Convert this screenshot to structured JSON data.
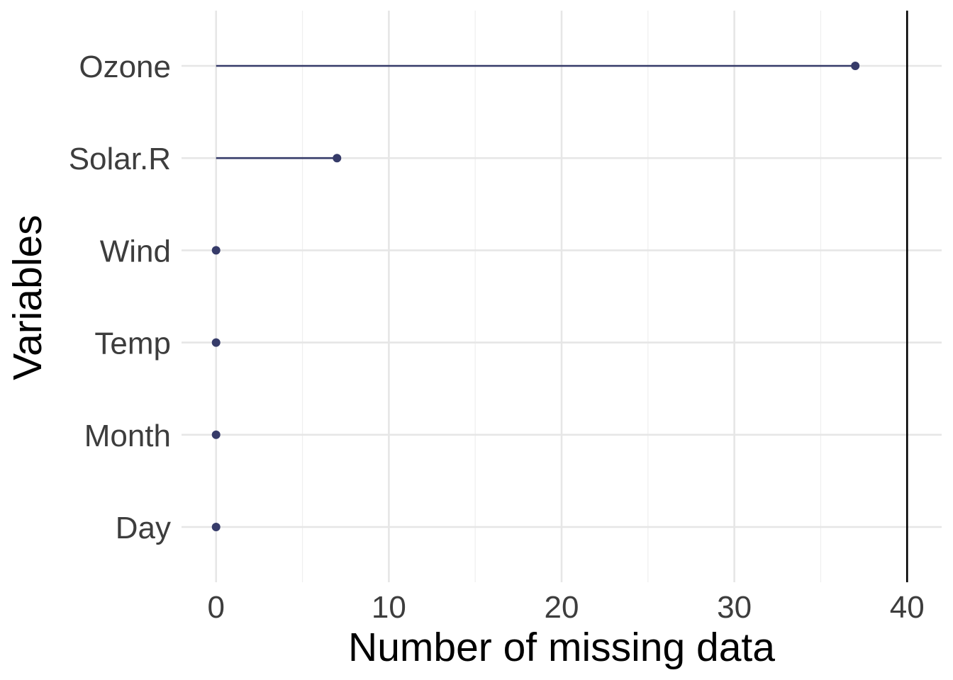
{
  "chart_data": {
    "type": "lollipop",
    "categories": [
      "Ozone",
      "Solar.R",
      "Wind",
      "Temp",
      "Month",
      "Day"
    ],
    "values": [
      37,
      7,
      0,
      0,
      0,
      0
    ],
    "xlabel": "Number of missing data",
    "ylabel": "Variables",
    "xlim": [
      -2,
      42
    ],
    "x_ticks": [
      0,
      10,
      20,
      30,
      40
    ],
    "x_tick_labels": [
      "0",
      "10",
      "20",
      "30",
      "40"
    ],
    "reference_line": 40,
    "grid": true,
    "colors": {
      "series": "#363B69",
      "reference_line": "#000000",
      "grid_major": "#E6E6E6",
      "grid_minor": "#EFEFEF",
      "tick_text": "#3D3D3D"
    }
  }
}
